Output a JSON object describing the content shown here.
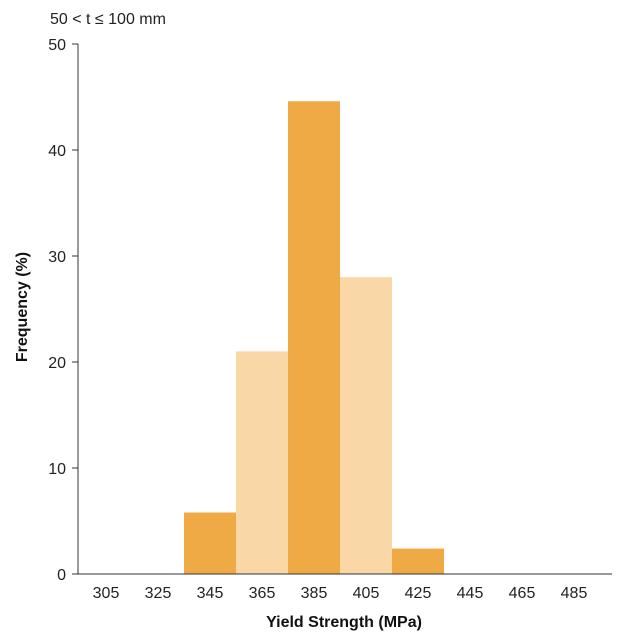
{
  "chart_data": {
    "type": "bar",
    "title": "50 < t ≤ 100 mm",
    "xlabel": "Yield Strength (MPa)",
    "ylabel": "Frequency (%)",
    "categories": [
      "305",
      "325",
      "345",
      "365",
      "385",
      "405",
      "425",
      "445",
      "465",
      "485"
    ],
    "values": [
      0,
      0,
      5.8,
      21.0,
      44.6,
      28.0,
      2.4,
      0,
      0,
      0
    ],
    "bar_colors": [
      "#F0AA45",
      "#F0AA45",
      "#F0AA45",
      "#FAD7A7",
      "#F0AA45",
      "#FAD7A7",
      "#F0AA45",
      "#F0AA45",
      "#F0AA45",
      "#F0AA45"
    ],
    "ylim": [
      0,
      50
    ],
    "yticks": [
      "0",
      "10",
      "20",
      "30",
      "40",
      "50"
    ],
    "grid": false
  }
}
